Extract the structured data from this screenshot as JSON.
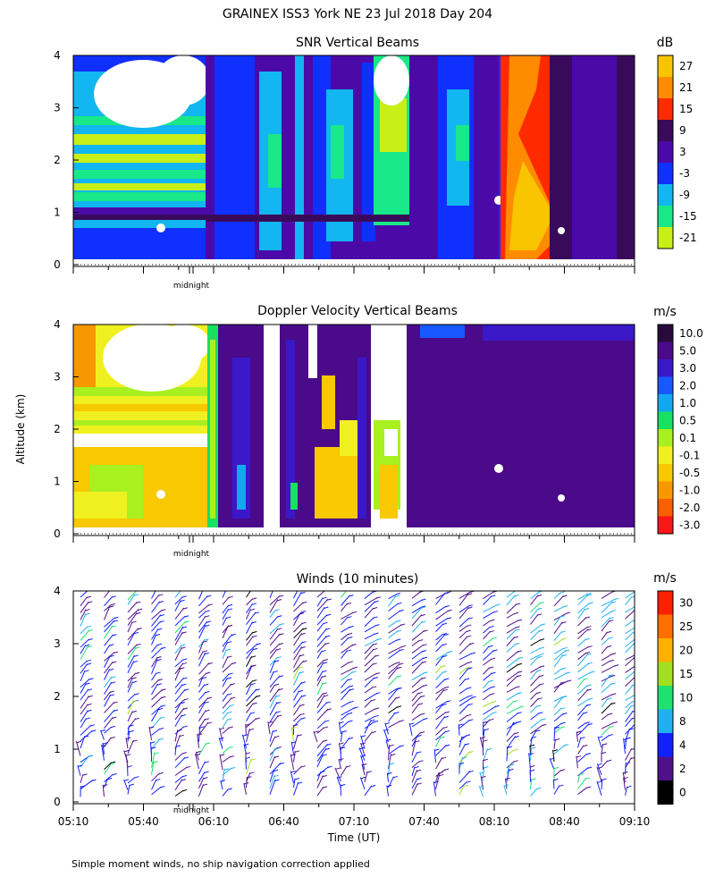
{
  "figure": {
    "title": "GRAINEX ISS3 York NE  23 Jul 2018 Day 204",
    "ylabel": "Altitude (km)",
    "xlabel": "Time (UT)",
    "footnote": "Simple moment winds, no ship navigation correction applied",
    "midnight_label": "midnight"
  },
  "chart_data": [
    {
      "type": "heatmap",
      "title": "SNR Vertical Beams",
      "colorbar_unit": "dB",
      "colorbar_labels": [
        "27",
        "21",
        "15",
        "9",
        "3",
        "-3",
        "-9",
        "-15",
        "-21"
      ],
      "colorbar_colors": [
        "#f9c400",
        "#ff8c00",
        "#ff2a00",
        "#3a0a5a",
        "#4b0aa8",
        "#1030ff",
        "#12b6f0",
        "#18e888",
        "#c8f018"
      ],
      "ylim": [
        0,
        4
      ],
      "yticks": [
        "0",
        "1",
        "2",
        "3",
        "4"
      ]
    },
    {
      "type": "heatmap",
      "title": "Doppler Velocity Vertical Beams",
      "colorbar_unit": "m/s",
      "colorbar_labels": [
        "10.0",
        "5.0",
        "3.0",
        "2.0",
        "1.0",
        "0.5",
        "0.1",
        "-0.1",
        "-0.5",
        "-1.0",
        "-2.0",
        "-3.0"
      ],
      "colorbar_colors": [
        "#2a0a3a",
        "#4a0a8a",
        "#3a18c8",
        "#1858ff",
        "#12a8f0",
        "#18e060",
        "#a8f020",
        "#f0f020",
        "#f8c800",
        "#f89800",
        "#f86000",
        "#f81818"
      ],
      "ylim": [
        0,
        4
      ],
      "yticks": [
        "0",
        "1",
        "2",
        "3",
        "4"
      ]
    },
    {
      "type": "scatter",
      "title": "Winds (10 minutes)",
      "colorbar_unit": "m/s",
      "colorbar_labels": [
        "30",
        "25",
        "20",
        "15",
        "10",
        "8",
        "4",
        "2",
        "0"
      ],
      "colorbar_colors": [
        "#ff2000",
        "#ff7000",
        "#ffb000",
        "#a0e020",
        "#20e070",
        "#20b0f0",
        "#1020ff",
        "#50108a",
        "#000000"
      ],
      "ylim": [
        0,
        4
      ],
      "yticks": [
        "0",
        "1",
        "2",
        "3",
        "4"
      ],
      "xticks": [
        "05:10",
        "05:40",
        "06:10",
        "06:40",
        "07:10",
        "07:40",
        "08:10",
        "08:40",
        "09:10"
      ]
    }
  ]
}
